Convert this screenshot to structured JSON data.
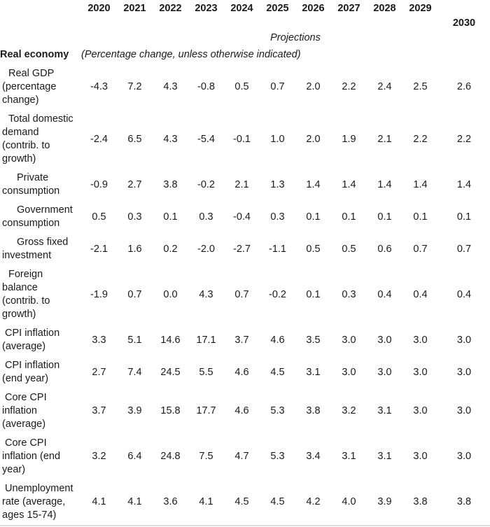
{
  "colors": {
    "text": "#1a1a1a",
    "background": "#ffffff",
    "bottom_rule": "#dcdcdc"
  },
  "table": {
    "years_row1": [
      "2020",
      "2021",
      "2022",
      "2023",
      "2024",
      "2025",
      "2026",
      "2027",
      "2028",
      "2029"
    ],
    "year_row2": "2030",
    "projections_label": "Projections",
    "section_title": "Real economy",
    "section_note": "(Percentage change, unless otherwise indicated)",
    "rows": [
      {
        "label": "Real GDP (percentage change)",
        "indent": 1,
        "values": [
          "-4.3",
          "7.2",
          "4.3",
          "-0.8",
          "0.5",
          "0.7",
          "2.0",
          "2.2",
          "2.4",
          "2.5",
          "2.6"
        ]
      },
      {
        "label": "Total domestic demand (contrib. to growth)",
        "indent": 1,
        "values": [
          "-2.4",
          "6.5",
          "4.3",
          "-5.4",
          "-0.1",
          "1.0",
          "2.0",
          "1.9",
          "2.1",
          "2.2",
          "2.2"
        ]
      },
      {
        "label": "Private consumption",
        "indent": 2,
        "values": [
          "-0.9",
          "2.7",
          "3.8",
          "-0.2",
          "2.1",
          "1.3",
          "1.4",
          "1.4",
          "1.4",
          "1.4",
          "1.4"
        ]
      },
      {
        "label": "Government consumption",
        "indent": 2,
        "values": [
          "0.5",
          "0.3",
          "0.1",
          "0.3",
          "-0.4",
          "0.3",
          "0.1",
          "0.1",
          "0.1",
          "0.1",
          "0.1"
        ]
      },
      {
        "label": "Gross fixed investment",
        "indent": 2,
        "values": [
          "-2.1",
          "1.6",
          "0.2",
          "-2.0",
          "-2.7",
          "-1.1",
          "0.5",
          "0.5",
          "0.6",
          "0.7",
          "0.7"
        ]
      },
      {
        "label": "Foreign balance (contrib. to growth)",
        "indent": 1,
        "values": [
          "-1.9",
          "0.7",
          "0.0",
          "4.3",
          "0.7",
          "-0.2",
          "0.1",
          "0.3",
          "0.4",
          "0.4",
          "0.4"
        ]
      },
      {
        "label": "CPI inflation (average)",
        "indent": 0,
        "values": [
          "3.3",
          "5.1",
          "14.6",
          "17.1",
          "3.7",
          "4.6",
          "3.5",
          "3.0",
          "3.0",
          "3.0",
          "3.0"
        ]
      },
      {
        "label": "CPI inflation (end year)",
        "indent": 0,
        "values": [
          "2.7",
          "7.4",
          "24.5",
          "5.5",
          "4.6",
          "4.5",
          "3.1",
          "3.0",
          "3.0",
          "3.0",
          "3.0"
        ]
      },
      {
        "label": "Core CPI inflation (average)",
        "indent": 0,
        "values": [
          "3.7",
          "3.9",
          "15.8",
          "17.7",
          "4.6",
          "5.3",
          "3.8",
          "3.2",
          "3.1",
          "3.0",
          "3.0"
        ]
      },
      {
        "label": "Core CPI inflation (end year)",
        "indent": 0,
        "values": [
          "3.2",
          "6.4",
          "24.8",
          "7.5",
          "4.7",
          "5.3",
          "3.4",
          "3.1",
          "3.1",
          "3.0",
          "3.0"
        ]
      },
      {
        "label": "Unemployment rate (average, ages 15-74)",
        "indent": 0,
        "values": [
          "4.1",
          "4.1",
          "3.6",
          "4.1",
          "4.5",
          "4.5",
          "4.2",
          "4.0",
          "3.9",
          "3.8",
          "3.8"
        ]
      }
    ]
  },
  "chart_data": {
    "type": "table",
    "title": "Real economy",
    "subtitle": "(Percentage change, unless otherwise indicated)",
    "columns": [
      "2020",
      "2021",
      "2022",
      "2023",
      "2024",
      "2025",
      "2026",
      "2027",
      "2028",
      "2029",
      "2030"
    ],
    "annotations": [
      "Projections"
    ],
    "rows": [
      {
        "label": "Real GDP (percentage change)",
        "values": [
          -4.3,
          7.2,
          4.3,
          -0.8,
          0.5,
          0.7,
          2.0,
          2.2,
          2.4,
          2.5,
          2.6
        ]
      },
      {
        "label": "Total domestic demand (contrib. to growth)",
        "values": [
          -2.4,
          6.5,
          4.3,
          -5.4,
          -0.1,
          1.0,
          2.0,
          1.9,
          2.1,
          2.2,
          2.2
        ]
      },
      {
        "label": "Private consumption",
        "values": [
          -0.9,
          2.7,
          3.8,
          -0.2,
          2.1,
          1.3,
          1.4,
          1.4,
          1.4,
          1.4,
          1.4
        ]
      },
      {
        "label": "Government consumption",
        "values": [
          0.5,
          0.3,
          0.1,
          0.3,
          -0.4,
          0.3,
          0.1,
          0.1,
          0.1,
          0.1,
          0.1
        ]
      },
      {
        "label": "Gross fixed investment",
        "values": [
          -2.1,
          1.6,
          0.2,
          -2.0,
          -2.7,
          -1.1,
          0.5,
          0.5,
          0.6,
          0.7,
          0.7
        ]
      },
      {
        "label": "Foreign balance (contrib. to growth)",
        "values": [
          -1.9,
          0.7,
          0.0,
          4.3,
          0.7,
          -0.2,
          0.1,
          0.3,
          0.4,
          0.4,
          0.4
        ]
      },
      {
        "label": "CPI inflation (average)",
        "values": [
          3.3,
          5.1,
          14.6,
          17.1,
          3.7,
          4.6,
          3.5,
          3.0,
          3.0,
          3.0,
          3.0
        ]
      },
      {
        "label": "CPI inflation (end year)",
        "values": [
          2.7,
          7.4,
          24.5,
          5.5,
          4.6,
          4.5,
          3.1,
          3.0,
          3.0,
          3.0,
          3.0
        ]
      },
      {
        "label": "Core CPI inflation (average)",
        "values": [
          3.7,
          3.9,
          15.8,
          17.7,
          4.6,
          5.3,
          3.8,
          3.2,
          3.1,
          3.0,
          3.0
        ]
      },
      {
        "label": "Core CPI inflation (end year)",
        "values": [
          3.2,
          6.4,
          24.8,
          7.5,
          4.7,
          5.3,
          3.4,
          3.1,
          3.1,
          3.0,
          3.0
        ]
      },
      {
        "label": "Unemployment rate (average, ages 15-74)",
        "values": [
          4.1,
          4.1,
          3.6,
          4.1,
          4.5,
          4.5,
          4.2,
          4.0,
          3.9,
          3.8,
          3.8
        ]
      }
    ]
  }
}
